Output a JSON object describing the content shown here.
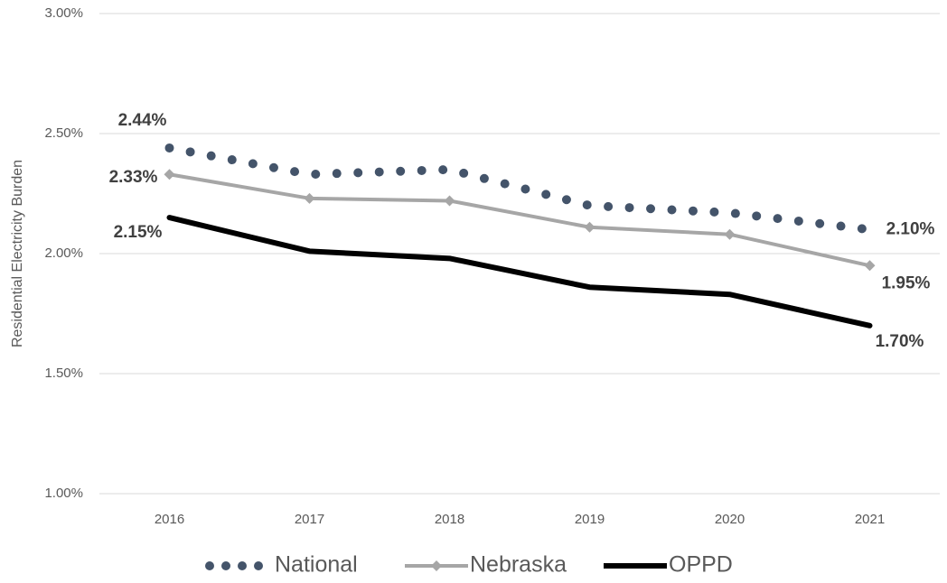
{
  "chart_data": {
    "type": "line",
    "y_label": "Residential Electricity Burden",
    "categories": [
      "2016",
      "2017",
      "2018",
      "2019",
      "2020",
      "2021"
    ],
    "series": [
      {
        "name": "National",
        "color": "#44546a",
        "style": "dotted",
        "values": [
          2.44,
          2.33,
          2.35,
          2.2,
          2.17,
          2.1
        ],
        "value_labels": [
          "2.44%",
          null,
          null,
          null,
          null,
          "2.10%"
        ]
      },
      {
        "name": "Nebraska",
        "color": "#a6a6a6",
        "style": "diamond",
        "values": [
          2.33,
          2.23,
          2.22,
          2.11,
          2.08,
          1.95
        ],
        "value_labels": [
          "2.33%",
          null,
          null,
          null,
          null,
          "1.95%"
        ]
      },
      {
        "name": "OPPD",
        "color": "#000000",
        "style": "thick",
        "values": [
          2.15,
          2.01,
          1.98,
          1.86,
          1.83,
          1.7
        ],
        "value_labels": [
          "2.15%",
          null,
          null,
          null,
          null,
          "1.70%"
        ]
      }
    ],
    "ylim": [
      1.0,
      3.0
    ],
    "yticks": [
      {
        "value": 1.0,
        "label": "1.00%"
      },
      {
        "value": 1.5,
        "label": "1.50%"
      },
      {
        "value": 2.0,
        "label": "2.00%"
      },
      {
        "value": 2.5,
        "label": "2.50%"
      },
      {
        "value": 3.0,
        "label": "3.00%"
      }
    ],
    "grid": true,
    "legend": "bottom"
  }
}
